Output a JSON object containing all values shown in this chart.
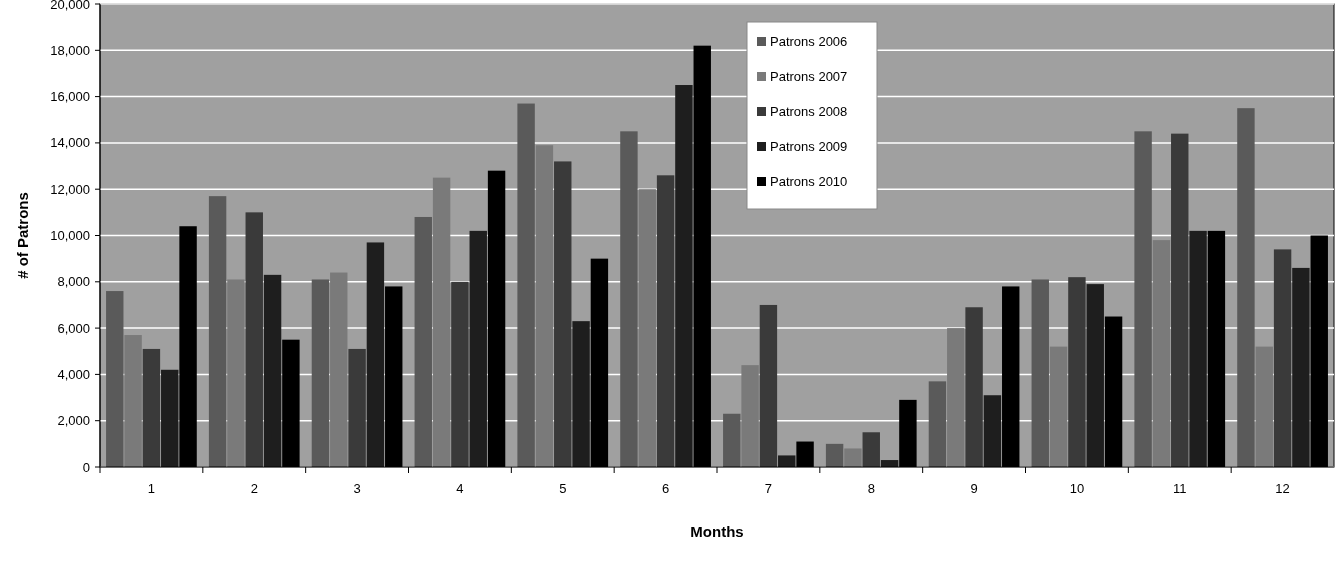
{
  "chart_data": {
    "type": "bar",
    "xlabel": "Months",
    "ylabel": "# of Patrons",
    "categories": [
      "1",
      "2",
      "3",
      "4",
      "5",
      "6",
      "7",
      "8",
      "9",
      "10",
      "11",
      "12"
    ],
    "series": [
      {
        "name": "Patrons 2006",
        "color": "#5a5a5a",
        "values": [
          7600,
          11700,
          8100,
          10800,
          15700,
          14500,
          2300,
          1000,
          3700,
          8100,
          14500,
          15500
        ]
      },
      {
        "name": "Patrons 2007",
        "color": "#7a7a7a",
        "values": [
          5700,
          8100,
          8400,
          12500,
          13900,
          12000,
          4400,
          800,
          6000,
          5200,
          9800,
          5200
        ]
      },
      {
        "name": "Patrons 2008",
        "color": "#3a3a3a",
        "values": [
          5100,
          11000,
          5100,
          8000,
          13200,
          12600,
          7000,
          1500,
          6900,
          8200,
          14400,
          9400
        ]
      },
      {
        "name": "Patrons 2009",
        "color": "#1e1e1e",
        "values": [
          4200,
          8300,
          9700,
          10200,
          6300,
          16500,
          500,
          300,
          3100,
          7900,
          10200,
          8600
        ]
      },
      {
        "name": "Patrons 2010",
        "color": "#000000",
        "values": [
          10400,
          5500,
          7800,
          12800,
          9000,
          18200,
          1100,
          2900,
          7800,
          6500,
          10200,
          10000
        ]
      }
    ],
    "ylim": [
      0,
      20000
    ],
    "yticks": [
      {
        "value": 0,
        "label": "0"
      },
      {
        "value": 2000,
        "label": "2,000"
      },
      {
        "value": 4000,
        "label": "4,000"
      },
      {
        "value": 6000,
        "label": "6,000"
      },
      {
        "value": 8000,
        "label": "8,000"
      },
      {
        "value": 10000,
        "label": "10,000"
      },
      {
        "value": 12000,
        "label": "12,000"
      },
      {
        "value": 14000,
        "label": "14,000"
      },
      {
        "value": 16000,
        "label": "16,000"
      },
      {
        "value": 18000,
        "label": "18,000"
      },
      {
        "value": 20000,
        "label": "20,000"
      }
    ],
    "grid": "y",
    "legend": "top"
  }
}
